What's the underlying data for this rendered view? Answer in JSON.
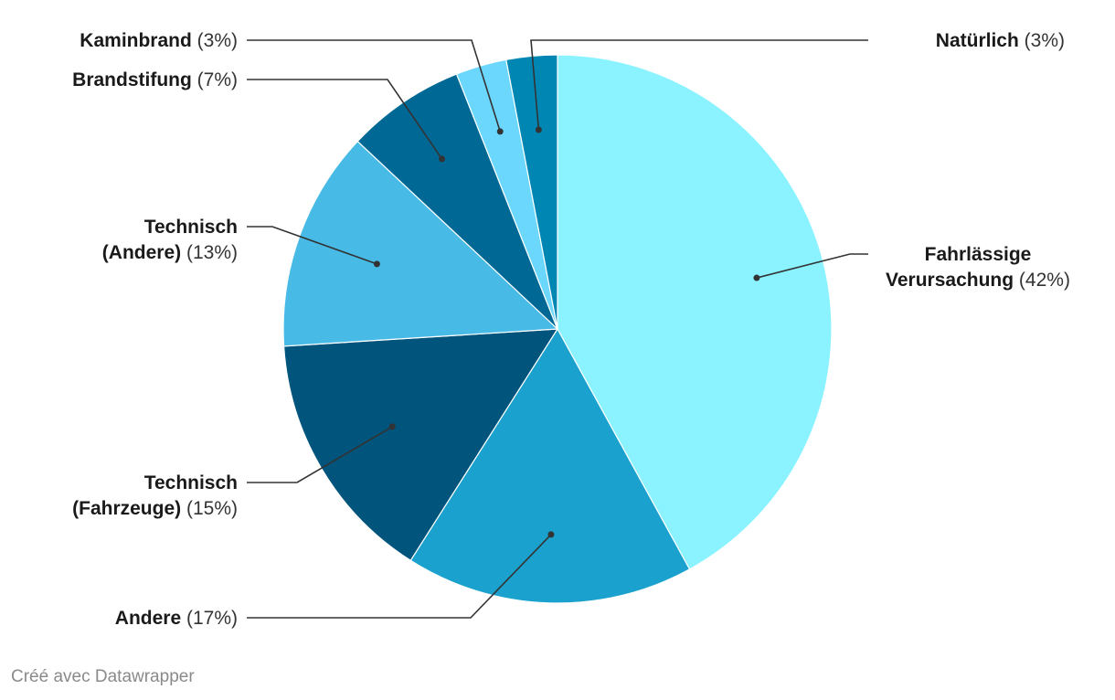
{
  "chart_data": {
    "type": "pie",
    "title": "",
    "slices": [
      {
        "label_lines": [
          "Fahrlässige",
          "Verursachung"
        ],
        "pct_text": "(42%)",
        "value": 42,
        "color": "#8af3ff"
      },
      {
        "label_lines": [
          "Andere"
        ],
        "pct_text": "(17%)",
        "value": 17,
        "color": "#1aa1cd"
      },
      {
        "label_lines": [
          "Technisch",
          "(Fahrzeuge)"
        ],
        "pct_text": "(15%)",
        "value": 15,
        "color": "#01547c"
      },
      {
        "label_lines": [
          "Technisch",
          "(Andere)"
        ],
        "pct_text": "(13%)",
        "value": 13,
        "color": "#47bae6"
      },
      {
        "label_lines": [
          "Brandstifung"
        ],
        "pct_text": "(7%)",
        "value": 7,
        "color": "#006894"
      },
      {
        "label_lines": [
          "Kaminbrand"
        ],
        "pct_text": "(3%)",
        "value": 3,
        "color": "#6bd7fd"
      },
      {
        "label_lines": [
          "Natürlich"
        ],
        "pct_text": "(3%)",
        "value": 3,
        "color": "#0086b3"
      }
    ]
  },
  "footer": {
    "credit": "Créé avec Datawrapper"
  }
}
